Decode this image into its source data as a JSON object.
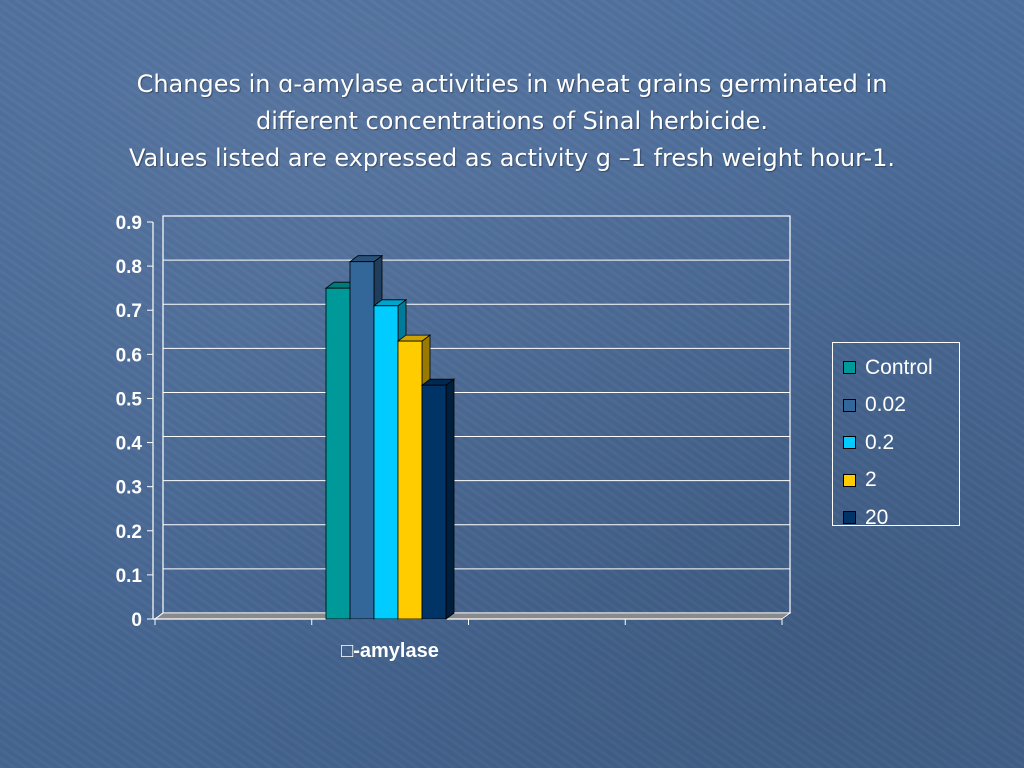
{
  "title": {
    "line1": "Changes in ɑ-amylase activities in wheat grains germinated in",
    "line2": "different concentrations of Sinal herbicide.",
    "line3": "Values listed are expressed as activity g –1 fresh weight hour-1."
  },
  "chart_data": {
    "type": "bar",
    "style": "3d-clustered-column",
    "categories": [
      "-amylase"
    ],
    "category_label_prefix_glyph": "□",
    "series": [
      {
        "name": "Control",
        "values": [
          0.75
        ],
        "color": "#009999"
      },
      {
        "name": "0.02",
        "values": [
          0.81
        ],
        "color": "#336699"
      },
      {
        "name": "0.2",
        "values": [
          0.71
        ],
        "color": "#00ccff"
      },
      {
        "name": "2",
        "values": [
          0.63
        ],
        "color": "#ffcc00"
      },
      {
        "name": "20",
        "values": [
          0.53
        ],
        "color": "#003366"
      }
    ],
    "ylim": [
      0,
      0.9
    ],
    "yticks": [
      "0",
      "0.1",
      "0.2",
      "0.3",
      "0.4",
      "0.5",
      "0.6",
      "0.7",
      "0.8",
      "0.9"
    ],
    "grid": true,
    "legend_position": "right",
    "xlabel": "",
    "ylabel": ""
  }
}
